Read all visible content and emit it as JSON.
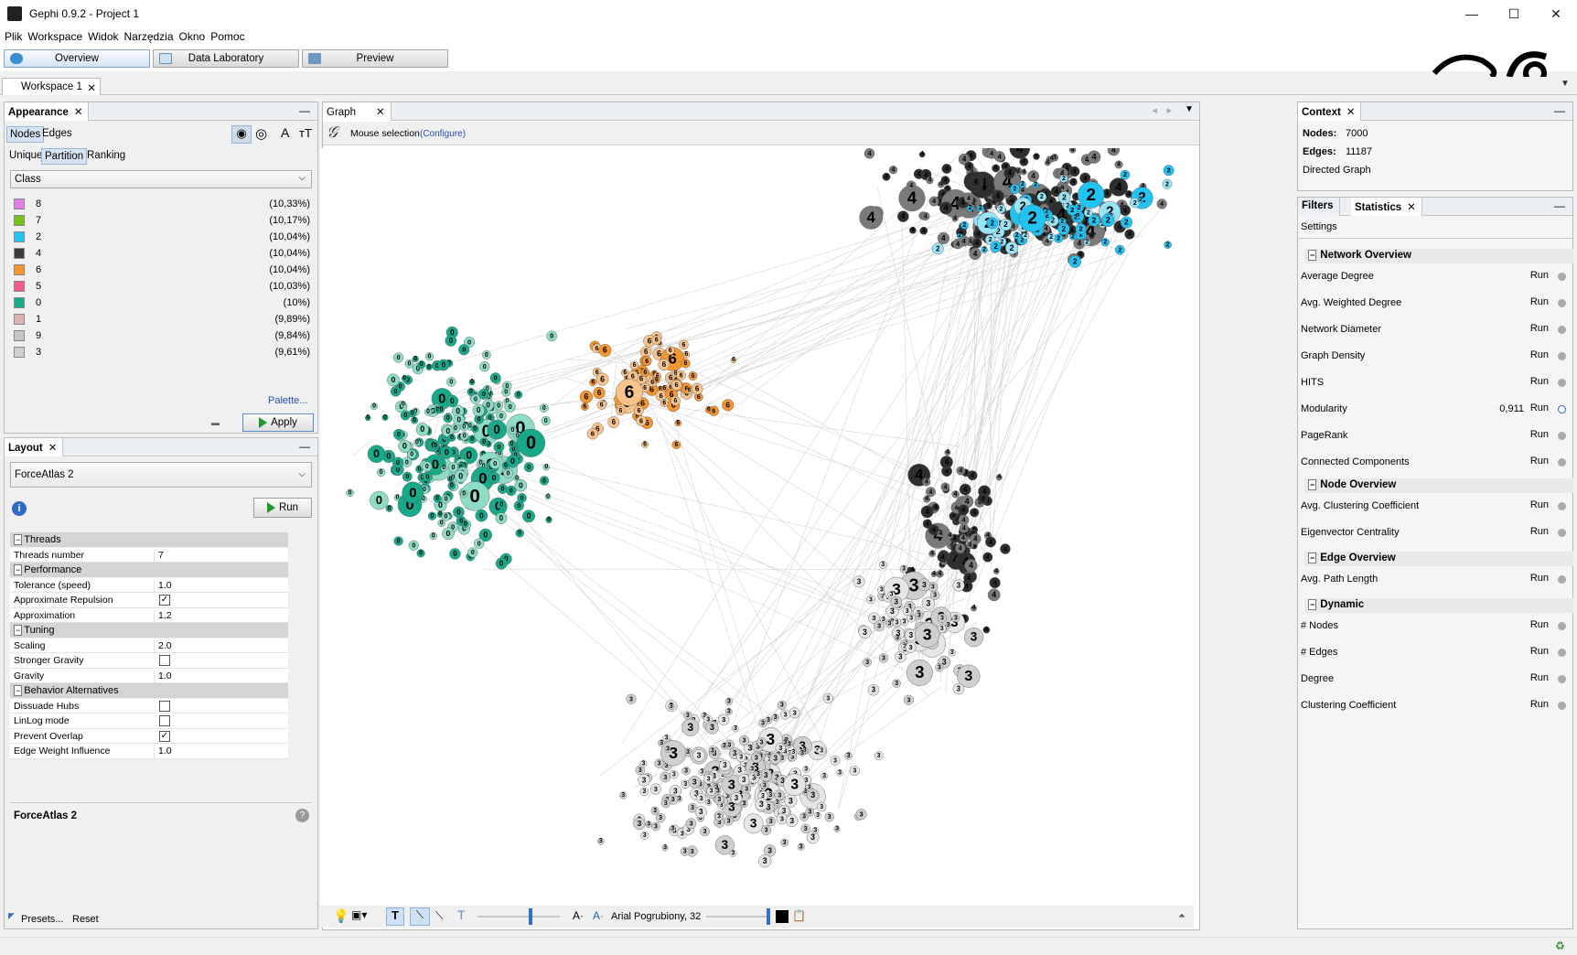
{
  "window": {
    "title": "Gephi 0.9.2 - Project 1",
    "minimize": "—",
    "maximize": "☐",
    "close": "✕"
  },
  "menu": [
    "Plik",
    "Workspace",
    "Widok",
    "Narzędzia",
    "Okno",
    "Pomoc"
  ],
  "modes": [
    {
      "label": "Overview",
      "active": true
    },
    {
      "label": "Data Laboratory",
      "active": false
    },
    {
      "label": "Preview",
      "active": false
    }
  ],
  "workspace_tab": {
    "label": "Workspace 1",
    "close": "✕"
  },
  "appearance": {
    "title": "Appearance",
    "close": "✕",
    "tabs": [
      "Nodes",
      "Edges"
    ],
    "modes": [
      "Unique",
      "Partition",
      "Ranking"
    ],
    "attribute": "Class",
    "partitions": [
      {
        "name": "8",
        "pct": "(10,33%)",
        "color": "#e17fe6"
      },
      {
        "name": "7",
        "pct": "(10,17%)",
        "color": "#77c21a"
      },
      {
        "name": "2",
        "pct": "(10,04%)",
        "color": "#21c3f2"
      },
      {
        "name": "4",
        "pct": "(10,04%)",
        "color": "#3b3b3b"
      },
      {
        "name": "6",
        "pct": "(10,04%)",
        "color": "#f39531"
      },
      {
        "name": "5",
        "pct": "(10,03%)",
        "color": "#f25a8d"
      },
      {
        "name": "0",
        "pct": "(10%)",
        "color": "#18a98a"
      },
      {
        "name": "1",
        "pct": "(9,89%)",
        "color": "#d9b2b2"
      },
      {
        "name": "9",
        "pct": "(9,84%)",
        "color": "#c6c6c6"
      },
      {
        "name": "3",
        "pct": "(9,61%)",
        "color": "#cfcfcf"
      }
    ],
    "palette_link": "Palette...",
    "apply_label": "Apply"
  },
  "layout": {
    "title": "Layout",
    "close": "✕",
    "algorithm": "ForceAtlas 2",
    "run_label": "Run",
    "categories": [
      {
        "name": "Threads",
        "rows": [
          {
            "k": "Threads number",
            "v": "7"
          }
        ]
      },
      {
        "name": "Performance",
        "rows": [
          {
            "k": "Tolerance (speed)",
            "v": "1.0"
          },
          {
            "k": "Approximate Repulsion",
            "check": true
          },
          {
            "k": "Approximation",
            "v": "1.2"
          }
        ]
      },
      {
        "name": "Tuning",
        "rows": [
          {
            "k": "Scaling",
            "v": "2.0"
          },
          {
            "k": "Stronger Gravity",
            "check": false
          },
          {
            "k": "Gravity",
            "v": "1.0"
          }
        ]
      },
      {
        "name": "Behavior Alternatives",
        "rows": [
          {
            "k": "Dissuade Hubs",
            "check": false
          },
          {
            "k": "LinLog mode",
            "check": false
          },
          {
            "k": "Prevent Overlap",
            "check": true
          },
          {
            "k": "Edge Weight Influence",
            "v": "1.0"
          }
        ]
      }
    ],
    "description_title": "ForceAtlas 2",
    "presets": "Presets...",
    "reset": "Reset"
  },
  "graph": {
    "tab": "Graph",
    "close": "✕",
    "selection": "Mouse selection",
    "configure": "(Configure)",
    "font_label": "Arial Pogrubiony, 32"
  },
  "context": {
    "title": "Context",
    "close": "✕",
    "nodes_label": "Nodes:",
    "nodes_value": "7000",
    "edges_label": "Edges:",
    "edges_value": "11187",
    "graph_type": "Directed Graph"
  },
  "statistics": {
    "filters_tab": "Filters",
    "stats_tab": "Statistics",
    "close": "✕",
    "settings": "Settings",
    "run": "Run",
    "sections": [
      {
        "name": "Network Overview",
        "items": [
          {
            "name": "Average Degree"
          },
          {
            "name": "Avg. Weighted Degree"
          },
          {
            "name": "Network Diameter"
          },
          {
            "name": "Graph Density"
          },
          {
            "name": "HITS"
          },
          {
            "name": "Modularity",
            "value": "0,911"
          },
          {
            "name": "PageRank"
          },
          {
            "name": "Connected Components"
          }
        ]
      },
      {
        "name": "Node Overview",
        "items": [
          {
            "name": "Avg. Clustering Coefficient"
          },
          {
            "name": "Eigenvector Centrality"
          }
        ]
      },
      {
        "name": "Edge Overview",
        "items": [
          {
            "name": "Avg. Path Length"
          }
        ]
      },
      {
        "name": "Dynamic",
        "items": [
          {
            "name": "# Nodes"
          },
          {
            "name": "# Edges"
          },
          {
            "name": "Degree"
          },
          {
            "name": "Clustering Coefficient"
          }
        ]
      }
    ]
  }
}
